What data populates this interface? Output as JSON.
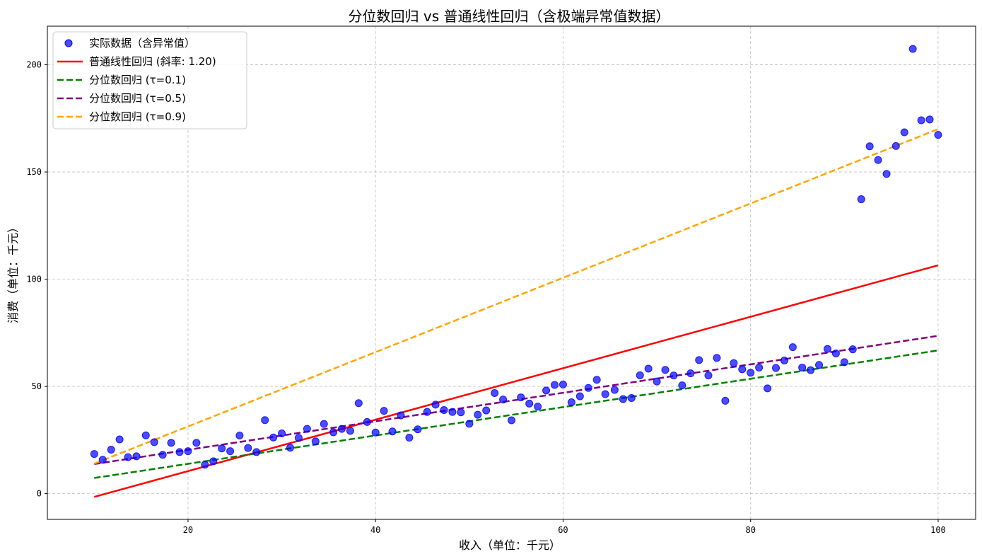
{
  "chart_data": {
    "type": "scatter",
    "title": "分位数回归 vs 普通线性回归（含极端异常值数据）",
    "xlabel": "收入（单位：千元）",
    "ylabel": "消费（单位：千元）",
    "xlim": [
      5,
      104
    ],
    "ylim": [
      -12,
      218
    ],
    "xticks": [
      20,
      40,
      60,
      80,
      100
    ],
    "yticks": [
      0,
      50,
      100,
      150,
      200
    ],
    "grid": true,
    "legend_position": "top-left",
    "colors": {
      "points": "#0000ff",
      "ols": "#ff0000",
      "q01": "#008000",
      "q05": "#800080",
      "q09": "#ffa500",
      "grid": "#b0b0b0"
    },
    "scatter": {
      "name": "实际数据（含异常值）",
      "points": [
        [
          10.0,
          18.5
        ],
        [
          10.9,
          15.8
        ],
        [
          11.8,
          20.5
        ],
        [
          12.7,
          25.3
        ],
        [
          13.6,
          17.0
        ],
        [
          14.5,
          17.4
        ],
        [
          15.5,
          27.2
        ],
        [
          16.4,
          24.0
        ],
        [
          17.3,
          18.1
        ],
        [
          18.2,
          23.7
        ],
        [
          19.1,
          19.4
        ],
        [
          20.0,
          19.8
        ],
        [
          20.9,
          23.7
        ],
        [
          21.8,
          13.5
        ],
        [
          22.7,
          15.1
        ],
        [
          23.6,
          21.1
        ],
        [
          24.5,
          19.8
        ],
        [
          25.5,
          27.1
        ],
        [
          26.4,
          21.3
        ],
        [
          27.3,
          19.4
        ],
        [
          28.2,
          34.3
        ],
        [
          29.1,
          26.2
        ],
        [
          30.0,
          28.1
        ],
        [
          30.9,
          21.4
        ],
        [
          31.8,
          26.0
        ],
        [
          32.7,
          30.2
        ],
        [
          33.6,
          24.4
        ],
        [
          34.5,
          32.5
        ],
        [
          35.5,
          28.6
        ],
        [
          36.4,
          30.2
        ],
        [
          37.3,
          29.3
        ],
        [
          38.2,
          42.2
        ],
        [
          39.1,
          33.4
        ],
        [
          40.0,
          28.5
        ],
        [
          40.9,
          38.6
        ],
        [
          41.8,
          29.0
        ],
        [
          42.7,
          36.5
        ],
        [
          43.6,
          26.1
        ],
        [
          44.5,
          30.0
        ],
        [
          45.5,
          38.1
        ],
        [
          46.4,
          41.5
        ],
        [
          47.3,
          39.0
        ],
        [
          48.2,
          38.1
        ],
        [
          49.1,
          37.9
        ],
        [
          50.0,
          32.6
        ],
        [
          50.9,
          36.8
        ],
        [
          51.8,
          38.8
        ],
        [
          52.7,
          46.9
        ],
        [
          53.6,
          43.9
        ],
        [
          54.5,
          34.2
        ],
        [
          55.5,
          44.9
        ],
        [
          56.4,
          42.0
        ],
        [
          57.3,
          40.6
        ],
        [
          58.2,
          48.1
        ],
        [
          59.1,
          50.7
        ],
        [
          60.0,
          50.9
        ],
        [
          60.9,
          42.6
        ],
        [
          61.8,
          45.4
        ],
        [
          62.7,
          49.3
        ],
        [
          63.6,
          53.1
        ],
        [
          64.5,
          46.4
        ],
        [
          65.5,
          48.4
        ],
        [
          66.4,
          44.1
        ],
        [
          67.3,
          44.6
        ],
        [
          68.2,
          55.2
        ],
        [
          69.1,
          58.3
        ],
        [
          70.0,
          52.3
        ],
        [
          70.9,
          57.7
        ],
        [
          71.8,
          55.1
        ],
        [
          72.7,
          50.5
        ],
        [
          73.6,
          56.1
        ],
        [
          74.5,
          62.3
        ],
        [
          75.5,
          55.1
        ],
        [
          76.4,
          63.3
        ],
        [
          77.3,
          43.3
        ],
        [
          78.2,
          60.9
        ],
        [
          79.1,
          58.0
        ],
        [
          80.0,
          56.4
        ],
        [
          80.9,
          58.8
        ],
        [
          81.8,
          49.1
        ],
        [
          82.7,
          58.6
        ],
        [
          83.6,
          62.1
        ],
        [
          84.5,
          68.3
        ],
        [
          85.5,
          58.8
        ],
        [
          86.4,
          57.6
        ],
        [
          87.3,
          60.0
        ],
        [
          88.2,
          67.5
        ],
        [
          89.1,
          65.4
        ],
        [
          90.0,
          61.3
        ],
        [
          90.9,
          67.3
        ],
        [
          91.8,
          137.3
        ],
        [
          92.7,
          162.0
        ],
        [
          93.6,
          155.6
        ],
        [
          94.5,
          149.1
        ],
        [
          95.5,
          162.1
        ],
        [
          96.4,
          168.5
        ],
        [
          97.3,
          207.4
        ],
        [
          98.2,
          174.1
        ],
        [
          99.1,
          174.5
        ],
        [
          100.0,
          167.3
        ]
      ]
    },
    "series": [
      {
        "name": "普通线性回归 (斜率: 1.20)",
        "style": "solid",
        "x": [
          10,
          100
        ],
        "y": [
          -1.5,
          106.5
        ]
      },
      {
        "name": "分位数回归 (τ=0.1)",
        "style": "dashed",
        "x": [
          10,
          100
        ],
        "y": [
          7.3,
          66.8
        ]
      },
      {
        "name": "分位数回归 (τ=0.5)",
        "style": "dashed",
        "x": [
          10,
          100
        ],
        "y": [
          13.8,
          73.6
        ]
      },
      {
        "name": "分位数回归 (τ=0.9)",
        "style": "dashed",
        "x": [
          10,
          100
        ],
        "y": [
          14.0,
          170.0
        ]
      }
    ]
  }
}
